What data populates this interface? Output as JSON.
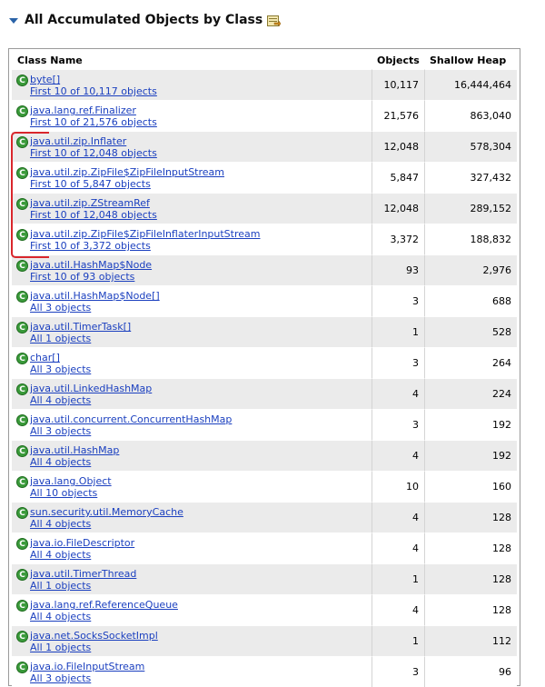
{
  "section": {
    "title": "All Accumulated Objects by Class",
    "collapse_icon": "triangle-down-icon",
    "export_icon": "export-icon"
  },
  "table": {
    "columns": [
      "Class Name",
      "Objects",
      "Shallow Heap"
    ],
    "rows": [
      {
        "name": "byte[]",
        "link": "First 10 of 10,117 objects",
        "objects": "10,117",
        "heap": "16,444,464"
      },
      {
        "name": "java.lang.ref.Finalizer",
        "link": "First 10 of 21,576 objects",
        "objects": "21,576",
        "heap": "863,040"
      },
      {
        "name": "java.util.zip.Inflater",
        "link": "First 10 of 12,048 objects",
        "objects": "12,048",
        "heap": "578,304"
      },
      {
        "name": "java.util.zip.ZipFile$ZipFileInputStream",
        "link": "First 10 of 5,847 objects",
        "objects": "5,847",
        "heap": "327,432"
      },
      {
        "name": "java.util.zip.ZStreamRef",
        "link": "First 10 of 12,048 objects",
        "objects": "12,048",
        "heap": "289,152"
      },
      {
        "name": "java.util.zip.ZipFile$ZipFileInflaterInputStream",
        "link": "First 10 of 3,372 objects",
        "objects": "3,372",
        "heap": "188,832"
      },
      {
        "name": "java.util.HashMap$Node",
        "link": "First 10 of 93 objects",
        "objects": "93",
        "heap": "2,976"
      },
      {
        "name": "java.util.HashMap$Node[]",
        "link": "All 3 objects",
        "objects": "3",
        "heap": "688"
      },
      {
        "name": "java.util.TimerTask[]",
        "link": "All 1 objects",
        "objects": "1",
        "heap": "528"
      },
      {
        "name": "char[]",
        "link": "All 3 objects",
        "objects": "3",
        "heap": "264"
      },
      {
        "name": "java.util.LinkedHashMap",
        "link": "All 4 objects",
        "objects": "4",
        "heap": "224"
      },
      {
        "name": "java.util.concurrent.ConcurrentHashMap",
        "link": "All 3 objects",
        "objects": "3",
        "heap": "192"
      },
      {
        "name": "java.util.HashMap",
        "link": "All 4 objects",
        "objects": "4",
        "heap": "192"
      },
      {
        "name": "java.lang.Object",
        "link": "All 10 objects",
        "objects": "10",
        "heap": "160"
      },
      {
        "name": "sun.security.util.MemoryCache",
        "link": "All 4 objects",
        "objects": "4",
        "heap": "128"
      },
      {
        "name": "java.io.FileDescriptor",
        "link": "All 4 objects",
        "objects": "4",
        "heap": "128"
      },
      {
        "name": "java.util.TimerThread",
        "link": "All 1 objects",
        "objects": "1",
        "heap": "128"
      },
      {
        "name": "java.lang.ref.ReferenceQueue",
        "link": "All 4 objects",
        "objects": "4",
        "heap": "128"
      },
      {
        "name": "java.net.SocksSocketImpl",
        "link": "All 1 objects",
        "objects": "1",
        "heap": "112"
      },
      {
        "name": "java.io.FileInputStream",
        "link": "All 3 objects",
        "objects": "3",
        "heap": "96"
      }
    ]
  },
  "class_icon_letter": "C",
  "annotation": {
    "color": "#d9262c",
    "highlighted_rows": [
      2,
      3,
      4,
      5
    ]
  }
}
